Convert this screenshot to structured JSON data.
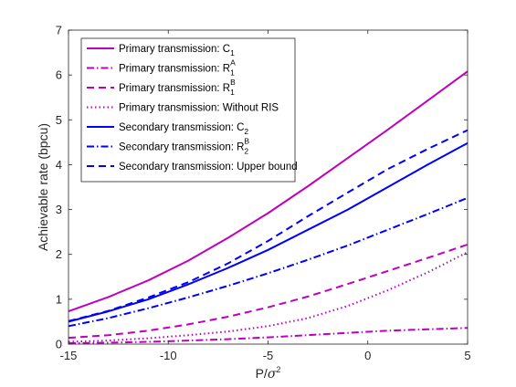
{
  "chart_data": {
    "type": "line",
    "xlabel": "P/σ²",
    "ylabel": "Achievable rate (bpcu)",
    "xlim": [
      -15,
      5
    ],
    "ylim": [
      0,
      7
    ],
    "x_ticks": [
      -15,
      -10,
      -5,
      0,
      5
    ],
    "y_ticks": [
      0,
      1,
      2,
      3,
      4,
      5,
      6,
      7
    ],
    "x_tick_labels": [
      "-15",
      "-10",
      "-5",
      "0",
      "5"
    ],
    "y_tick_labels": [
      "0",
      "1",
      "2",
      "3",
      "4",
      "5",
      "6",
      "7"
    ],
    "grid": false,
    "legend_position": "top-left",
    "x": [
      -15,
      -13,
      -11,
      -9,
      -7,
      -5,
      -3,
      -1,
      1,
      3,
      5
    ],
    "series": [
      {
        "name": "Primary transmission: C_1",
        "legend_main": "Primary transmission: C",
        "legend_sub": "1",
        "legend_sup": "",
        "color": "#BF00BF",
        "dash": "solid",
        "values": [
          0.73,
          1.05,
          1.42,
          1.86,
          2.37,
          2.92,
          3.52,
          4.15,
          4.78,
          5.43,
          6.08
        ]
      },
      {
        "name": "Primary transmission: R_1^A",
        "legend_main": "Primary transmission: R",
        "legend_sub": "1",
        "legend_sup": "A",
        "color": "#BF00BF",
        "dash": "dashdot",
        "values": [
          0.02,
          0.03,
          0.05,
          0.08,
          0.11,
          0.15,
          0.2,
          0.25,
          0.3,
          0.33,
          0.36
        ]
      },
      {
        "name": "Primary transmission: R_1^B",
        "legend_main": "Primary transmission: R",
        "legend_sub": "1",
        "legend_sup": "B",
        "color": "#BF00BF",
        "dash": "dashed",
        "values": [
          0.14,
          0.2,
          0.3,
          0.44,
          0.61,
          0.82,
          1.06,
          1.34,
          1.63,
          1.92,
          2.22
        ]
      },
      {
        "name": "Primary transmission: Without RIS",
        "legend_main": "Primary transmission: Without RIS",
        "legend_sub": "",
        "legend_sup": "",
        "color": "#BF00BF",
        "dash": "dotted",
        "values": [
          0.05,
          0.08,
          0.13,
          0.2,
          0.28,
          0.4,
          0.58,
          0.85,
          1.2,
          1.6,
          2.05
        ]
      },
      {
        "name": "Secondary transmission: C_2",
        "legend_main": "Secondary transmission: C",
        "legend_sub": "2",
        "legend_sup": "",
        "color": "#0000FF",
        "dash": "solid",
        "values": [
          0.5,
          0.73,
          1.0,
          1.33,
          1.7,
          2.1,
          2.55,
          3.0,
          3.5,
          4.0,
          4.48
        ]
      },
      {
        "name": "Secondary transmission: R_2^B",
        "legend_main": "Secondary transmission: R",
        "legend_sub": "2",
        "legend_sup": "B",
        "color": "#0000FF",
        "dash": "dashdot",
        "values": [
          0.4,
          0.58,
          0.8,
          1.04,
          1.3,
          1.58,
          1.88,
          2.2,
          2.55,
          2.9,
          3.26
        ]
      },
      {
        "name": "Secondary transmission: Upper bound",
        "legend_main": "Secondary transmission: Upper bound",
        "legend_sub": "",
        "legend_sup": "",
        "color": "#0000FF",
        "dash": "dashed",
        "values": [
          0.51,
          0.74,
          1.04,
          1.38,
          1.8,
          2.3,
          2.85,
          3.38,
          3.9,
          4.35,
          4.77
        ]
      }
    ]
  }
}
